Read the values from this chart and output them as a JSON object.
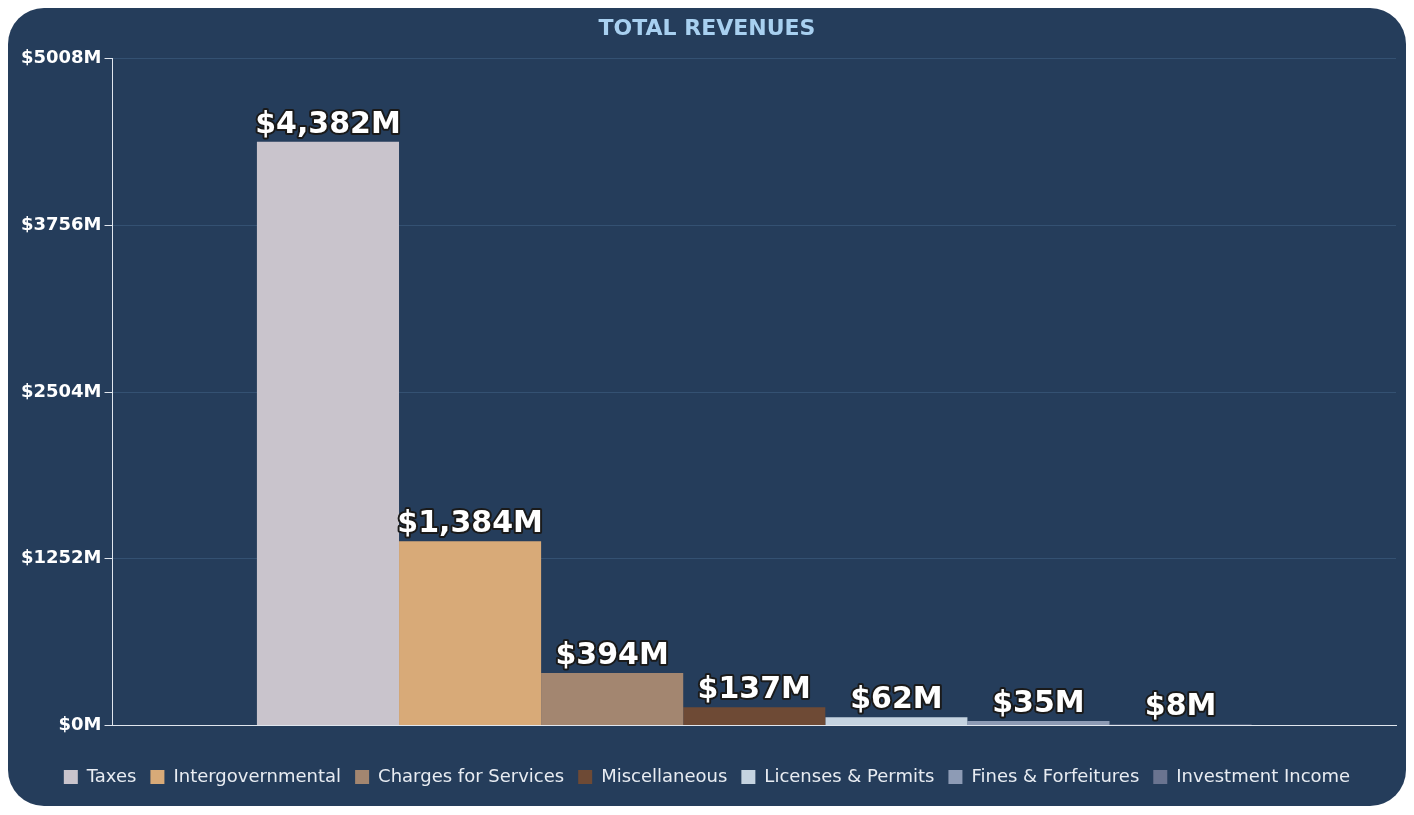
{
  "chart_data": {
    "type": "bar",
    "title": "TOTAL REVENUES",
    "categories": [
      null
    ],
    "series": [
      {
        "name": "Taxes",
        "color": "#c9c4cc",
        "values": [
          4382
        ],
        "value_labels": [
          "$4,382M"
        ]
      },
      {
        "name": "Intergovernmental",
        "color": "#d8aa78",
        "values": [
          1384
        ],
        "value_labels": [
          "$1,384M"
        ]
      },
      {
        "name": "Charges for Services",
        "color": "#a38670",
        "values": [
          394
        ],
        "value_labels": [
          "$394M"
        ]
      },
      {
        "name": "Miscellaneous",
        "color": "#6e4a35",
        "values": [
          137
        ],
        "value_labels": [
          "$137M"
        ]
      },
      {
        "name": "Licenses & Permits",
        "color": "#c5d3e0",
        "values": [
          62
        ],
        "value_labels": [
          "$62M"
        ]
      },
      {
        "name": "Fines & Forfeitures",
        "color": "#8d9bb5",
        "values": [
          35
        ],
        "value_labels": [
          "$35M"
        ]
      },
      {
        "name": "Investment Income",
        "color": "#6a7490",
        "values": [
          8
        ],
        "value_labels": [
          "$8M"
        ]
      }
    ],
    "ylim": [
      0,
      5008
    ],
    "yticks": [
      {
        "value": 0,
        "label": "$0M"
      },
      {
        "value": 1252,
        "label": "$1252M"
      },
      {
        "value": 2504,
        "label": "$2504M"
      },
      {
        "value": 3756,
        "label": "$3756M"
      },
      {
        "value": 5008,
        "label": "$5008M"
      }
    ],
    "grid": "y",
    "legend": "bottom"
  }
}
